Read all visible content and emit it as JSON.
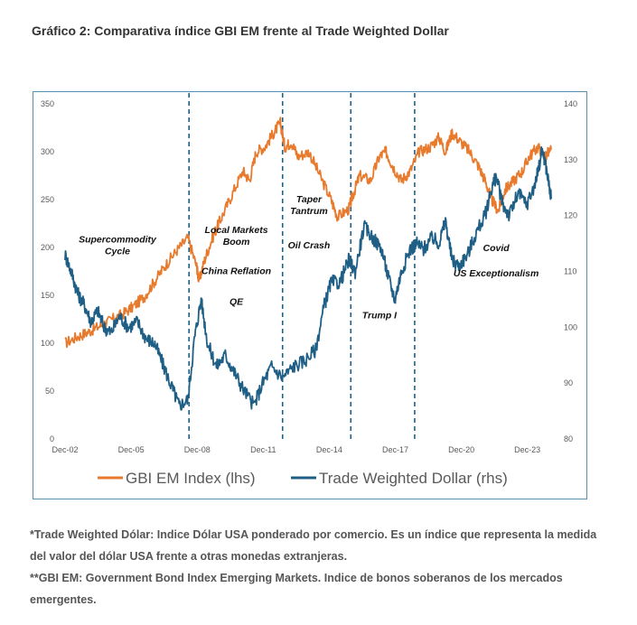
{
  "title": "Gráfico 2: Comparativa índice GBI EM frente al Trade Weighted Dollar",
  "chart_data": {
    "type": "line",
    "x_ticks": [
      "Dec-02",
      "Dec-05",
      "Dec-08",
      "Dec-11",
      "Dec-14",
      "Dec-17",
      "Dec-20",
      "Dec-23"
    ],
    "y_left_ticks": [
      "0",
      "50",
      "100",
      "150",
      "200",
      "250",
      "300",
      "350"
    ],
    "y_right_ticks": [
      "80",
      "90",
      "100",
      "110",
      "120",
      "130",
      "140"
    ],
    "ylim_left": [
      0,
      350
    ],
    "ylim_right": [
      80,
      140
    ],
    "xlim": [
      2002.92,
      2025.0
    ],
    "series": [
      {
        "name": "GBI EM Index (lhs)",
        "axis": "left",
        "color": "#e87a2d",
        "points": [
          [
            2002.92,
            100
          ],
          [
            2003.5,
            107
          ],
          [
            2004.0,
            112
          ],
          [
            2004.5,
            118
          ],
          [
            2005.0,
            124
          ],
          [
            2005.5,
            130
          ],
          [
            2006.0,
            138
          ],
          [
            2006.5,
            148
          ],
          [
            2007.0,
            165
          ],
          [
            2007.5,
            182
          ],
          [
            2008.0,
            197
          ],
          [
            2008.5,
            210
          ],
          [
            2008.9,
            180
          ],
          [
            2009.0,
            165
          ],
          [
            2009.3,
            190
          ],
          [
            2009.7,
            215
          ],
          [
            2010.0,
            230
          ],
          [
            2010.5,
            255
          ],
          [
            2011.0,
            280
          ],
          [
            2011.3,
            270
          ],
          [
            2011.6,
            300
          ],
          [
            2012.0,
            305
          ],
          [
            2012.4,
            320
          ],
          [
            2012.7,
            330
          ],
          [
            2012.9,
            305
          ],
          [
            2013.2,
            310
          ],
          [
            2013.5,
            295
          ],
          [
            2014.0,
            300
          ],
          [
            2014.5,
            275
          ],
          [
            2015.0,
            250
          ],
          [
            2015.3,
            232
          ],
          [
            2015.8,
            240
          ],
          [
            2016.0,
            255
          ],
          [
            2016.3,
            275
          ],
          [
            2016.8,
            270
          ],
          [
            2017.2,
            295
          ],
          [
            2017.5,
            300
          ],
          [
            2017.8,
            285
          ],
          [
            2018.2,
            270
          ],
          [
            2018.6,
            280
          ],
          [
            2019.0,
            300
          ],
          [
            2019.5,
            305
          ],
          [
            2019.9,
            315
          ],
          [
            2020.2,
            300
          ],
          [
            2020.5,
            320
          ],
          [
            2020.9,
            310
          ],
          [
            2021.3,
            300
          ],
          [
            2021.7,
            285
          ],
          [
            2022.0,
            270
          ],
          [
            2022.3,
            250
          ],
          [
            2022.6,
            238
          ],
          [
            2022.9,
            260
          ],
          [
            2023.3,
            270
          ],
          [
            2023.7,
            280
          ],
          [
            2024.0,
            295
          ],
          [
            2024.4,
            305
          ],
          [
            2024.7,
            295
          ],
          [
            2025.0,
            302
          ]
        ]
      },
      {
        "name": "Trade Weighted Dollar (rhs)",
        "axis": "right",
        "color": "#1f5f86",
        "points": [
          [
            2002.92,
            113
          ],
          [
            2003.2,
            110
          ],
          [
            2003.5,
            106
          ],
          [
            2003.8,
            104
          ],
          [
            2004.1,
            101
          ],
          [
            2004.4,
            103
          ],
          [
            2004.7,
            100
          ],
          [
            2005.0,
            99
          ],
          [
            2005.4,
            102
          ],
          [
            2005.8,
            100
          ],
          [
            2006.2,
            101
          ],
          [
            2006.6,
            98
          ],
          [
            2007.0,
            97
          ],
          [
            2007.4,
            93
          ],
          [
            2007.8,
            89
          ],
          [
            2008.1,
            86
          ],
          [
            2008.5,
            87
          ],
          [
            2008.8,
            98
          ],
          [
            2009.1,
            105
          ],
          [
            2009.4,
            97
          ],
          [
            2009.8,
            93
          ],
          [
            2010.2,
            95
          ],
          [
            2010.6,
            92
          ],
          [
            2011.0,
            89
          ],
          [
            2011.5,
            86
          ],
          [
            2011.9,
            90
          ],
          [
            2012.3,
            93
          ],
          [
            2012.8,
            91
          ],
          [
            2013.3,
            93
          ],
          [
            2013.8,
            94
          ],
          [
            2014.3,
            96
          ],
          [
            2014.7,
            104
          ],
          [
            2015.0,
            108
          ],
          [
            2015.4,
            108
          ],
          [
            2015.8,
            112
          ],
          [
            2016.1,
            110
          ],
          [
            2016.5,
            118
          ],
          [
            2016.9,
            116
          ],
          [
            2017.3,
            114
          ],
          [
            2017.6,
            109
          ],
          [
            2017.9,
            105
          ],
          [
            2018.2,
            110
          ],
          [
            2018.6,
            114
          ],
          [
            2018.9,
            115
          ],
          [
            2019.2,
            114
          ],
          [
            2019.6,
            116
          ],
          [
            2019.9,
            115
          ],
          [
            2020.2,
            119
          ],
          [
            2020.5,
            112
          ],
          [
            2020.8,
            111
          ],
          [
            2021.2,
            113
          ],
          [
            2021.6,
            117
          ],
          [
            2022.0,
            120
          ],
          [
            2022.3,
            125
          ],
          [
            2022.5,
            127
          ],
          [
            2022.8,
            122
          ],
          [
            2023.1,
            120
          ],
          [
            2023.5,
            124
          ],
          [
            2023.9,
            122
          ],
          [
            2024.3,
            126
          ],
          [
            2024.6,
            132
          ],
          [
            2024.8,
            128
          ],
          [
            2025.0,
            123
          ]
        ]
      }
    ],
    "vlines": [
      2008.55,
      2012.8,
      2015.9,
      2018.8
    ],
    "annotations": [
      {
        "text": "Supercommodity",
        "x": 2005.3,
        "y": 205
      },
      {
        "text": "Cycle",
        "x": 2005.3,
        "y": 193
      },
      {
        "text": "Local Markets",
        "x": 2010.7,
        "y": 215
      },
      {
        "text": "Boom",
        "x": 2010.7,
        "y": 203
      },
      {
        "text": "China Reflation",
        "x": 2010.7,
        "y": 172
      },
      {
        "text": "QE",
        "x": 2010.7,
        "y": 140
      },
      {
        "text": "Taper",
        "x": 2014.0,
        "y": 247
      },
      {
        "text": "Tantrum",
        "x": 2014.0,
        "y": 235
      },
      {
        "text": "Oil Crash",
        "x": 2014.0,
        "y": 199
      },
      {
        "text": "Trump I",
        "x": 2017.2,
        "y": 126
      },
      {
        "text": "Covid",
        "x": 2022.5,
        "y": 196
      },
      {
        "text": "US Exceptionalism",
        "x": 2022.5,
        "y": 170
      }
    ]
  },
  "notes": [
    "*Trade Weighted Dólar: Indice Dólar USA ponderado por comercio. Es un índice que representa la medida del valor del dólar USA frente a otras monedas extranjeras.",
    "**GBI EM: Government Bond Index Emerging Markets. Indice de bonos soberanos de los mercados emergentes."
  ]
}
